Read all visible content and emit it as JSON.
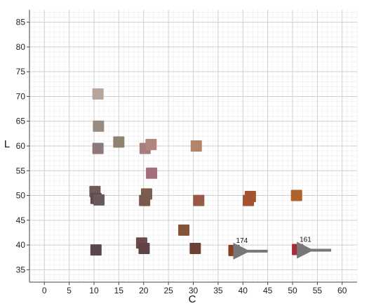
{
  "chart_data": {
    "type": "scatter",
    "xlabel": "C",
    "ylabel": "L",
    "xlim": [
      -3,
      63
    ],
    "ylim": [
      32.5,
      87.5
    ],
    "x_ticks": [
      0,
      5,
      10,
      15,
      20,
      25,
      30,
      35,
      40,
      45,
      50,
      55,
      60
    ],
    "y_ticks": [
      35,
      40,
      45,
      50,
      55,
      60,
      65,
      70,
      75,
      80,
      85
    ],
    "x_tick_labels": [
      "0",
      "5",
      "10",
      "15",
      "20",
      "25",
      "30",
      "35",
      "40",
      "45",
      "50",
      "55",
      "60"
    ],
    "y_tick_labels": [
      "35",
      "40",
      "45",
      "50",
      "55",
      "60",
      "65",
      "70",
      "75",
      "80",
      "85"
    ],
    "grid": true,
    "legend": "none",
    "points": [
      {
        "x": 10.8,
        "y": 70.5,
        "color": "#b5a59a"
      },
      {
        "x": 10.9,
        "y": 64.0,
        "color": "#9a8a80"
      },
      {
        "x": 15.0,
        "y": 60.8,
        "color": "#8e836e"
      },
      {
        "x": 10.8,
        "y": 59.5,
        "color": "#8e787a"
      },
      {
        "x": 20.3,
        "y": 59.5,
        "color": "#a57e80"
      },
      {
        "x": 21.5,
        "y": 60.3,
        "color": "#b0857b"
      },
      {
        "x": 30.6,
        "y": 60.0,
        "color": "#b4836a"
      },
      {
        "x": 21.6,
        "y": 54.5,
        "color": "#a46f7a"
      },
      {
        "x": 10.2,
        "y": 50.8,
        "color": "#6e5a5a"
      },
      {
        "x": 10.4,
        "y": 49.4,
        "color": "#5f4c4c"
      },
      {
        "x": 11.0,
        "y": 49.1,
        "color": "#6a585a"
      },
      {
        "x": 20.6,
        "y": 50.3,
        "color": "#7d5c50"
      },
      {
        "x": 20.2,
        "y": 49.0,
        "color": "#7a5a4c"
      },
      {
        "x": 31.1,
        "y": 49.0,
        "color": "#9a5848"
      },
      {
        "x": 41.5,
        "y": 49.8,
        "color": "#a4532e"
      },
      {
        "x": 41.1,
        "y": 49.0,
        "color": "#a35334"
      },
      {
        "x": 50.8,
        "y": 50.0,
        "color": "#b0622a"
      },
      {
        "x": 28.1,
        "y": 43.0,
        "color": "#84533a"
      },
      {
        "x": 19.6,
        "y": 40.4,
        "color": "#6c4a4c"
      },
      {
        "x": 20.1,
        "y": 39.3,
        "color": "#5e4444"
      },
      {
        "x": 10.4,
        "y": 39.0,
        "color": "#5a474e"
      },
      {
        "x": 30.4,
        "y": 39.3,
        "color": "#6a4232"
      },
      {
        "x": 38.2,
        "y": 38.9,
        "color": "#8a3e20"
      },
      {
        "x": 51.0,
        "y": 39.1,
        "color": "#a42d38"
      }
    ],
    "annotations": [
      {
        "text": "174",
        "x": 38.2,
        "y": 38.9
      },
      {
        "text": "161",
        "x": 51.0,
        "y": 39.1
      }
    ]
  }
}
